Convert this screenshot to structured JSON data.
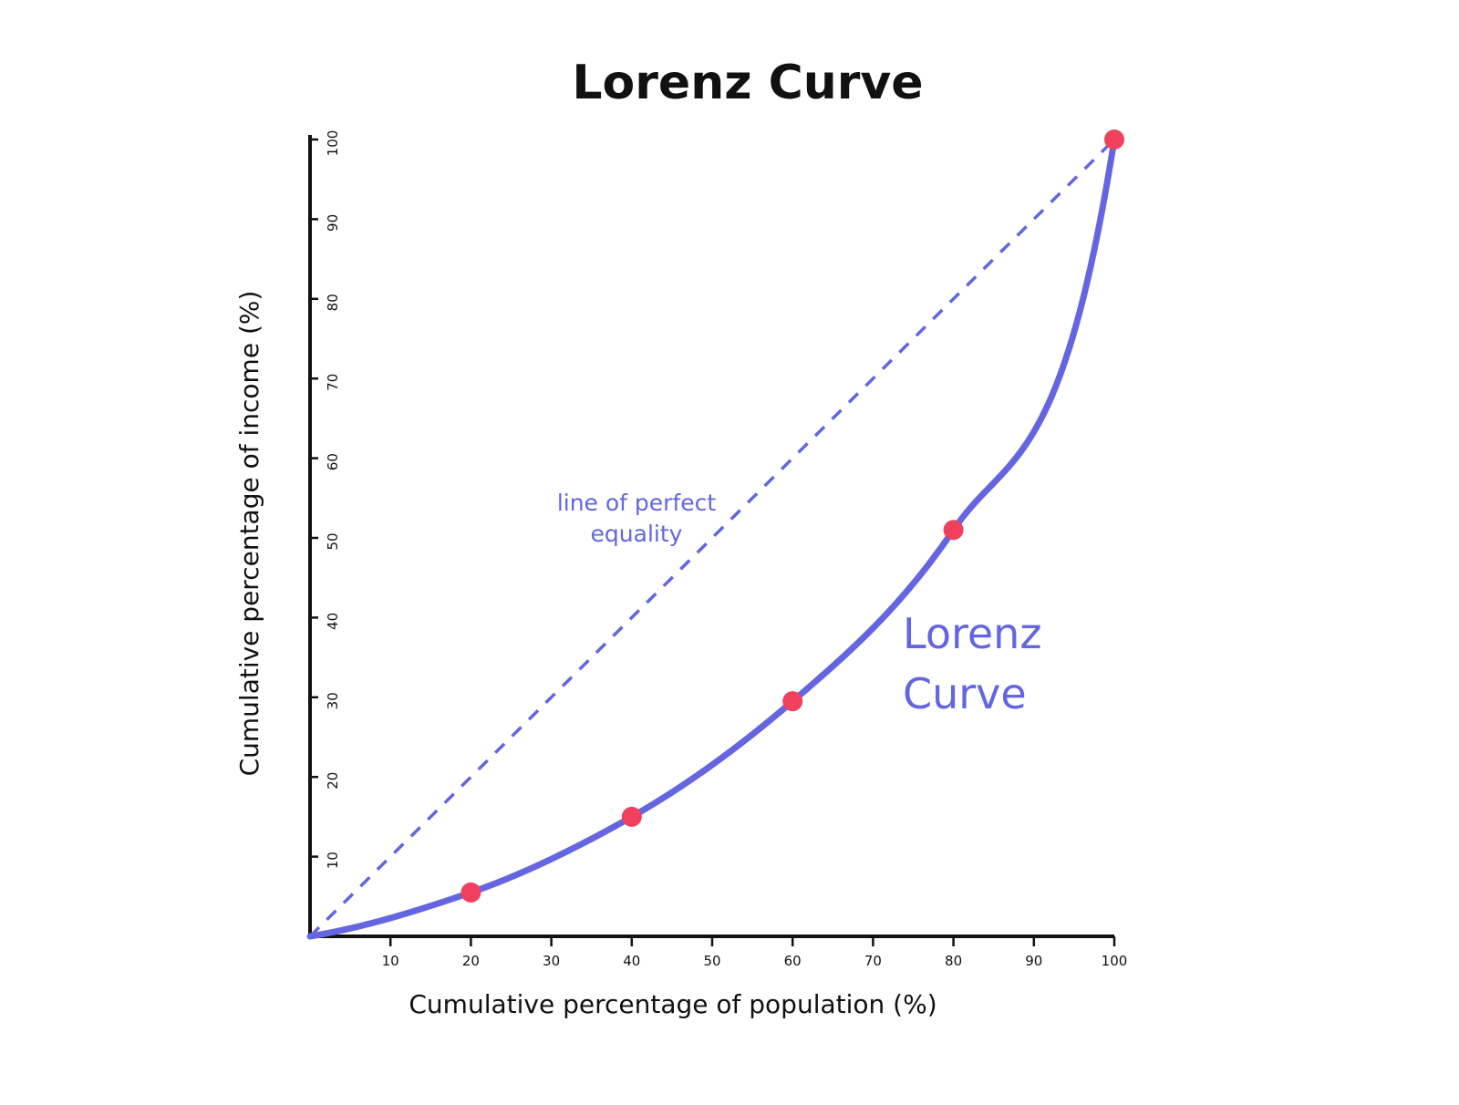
{
  "chart_data": {
    "type": "line",
    "title": "Lorenz Curve",
    "xlabel": "Cumulative percentage of population (%)",
    "ylabel": "Cumulative percentage of income (%)",
    "xlim": [
      0,
      100
    ],
    "ylim": [
      0,
      100
    ],
    "x_ticks": [
      10,
      20,
      30,
      40,
      50,
      60,
      70,
      80,
      90,
      100
    ],
    "y_ticks": [
      10,
      20,
      30,
      40,
      50,
      60,
      70,
      80,
      90,
      100
    ],
    "grid": false,
    "series": [
      {
        "name": "Lorenz Curve",
        "style": "solid",
        "x": [
          0,
          20,
          40,
          60,
          80,
          100
        ],
        "y": [
          0,
          5.5,
          15,
          29.5,
          51,
          100
        ],
        "marked_points": [
          {
            "x": 20,
            "y": 5.5
          },
          {
            "x": 40,
            "y": 15
          },
          {
            "x": 60,
            "y": 29.5
          },
          {
            "x": 80,
            "y": 51
          },
          {
            "x": 100,
            "y": 100
          }
        ]
      },
      {
        "name": "line of perfect equality",
        "style": "dashed",
        "x": [
          0,
          100
        ],
        "y": [
          0,
          100
        ]
      }
    ],
    "annotations": [
      {
        "text_lines": [
          "line of perfect",
          "equality"
        ],
        "color": "#6366e0"
      },
      {
        "text_lines": [
          "Lorenz",
          "Curve"
        ],
        "color": "#6366e0"
      }
    ],
    "colors": {
      "curve": "#6366e0",
      "equality_line": "#6366e0",
      "points": "#f0405e",
      "axes": "#111111",
      "background": "#ffffff"
    }
  }
}
